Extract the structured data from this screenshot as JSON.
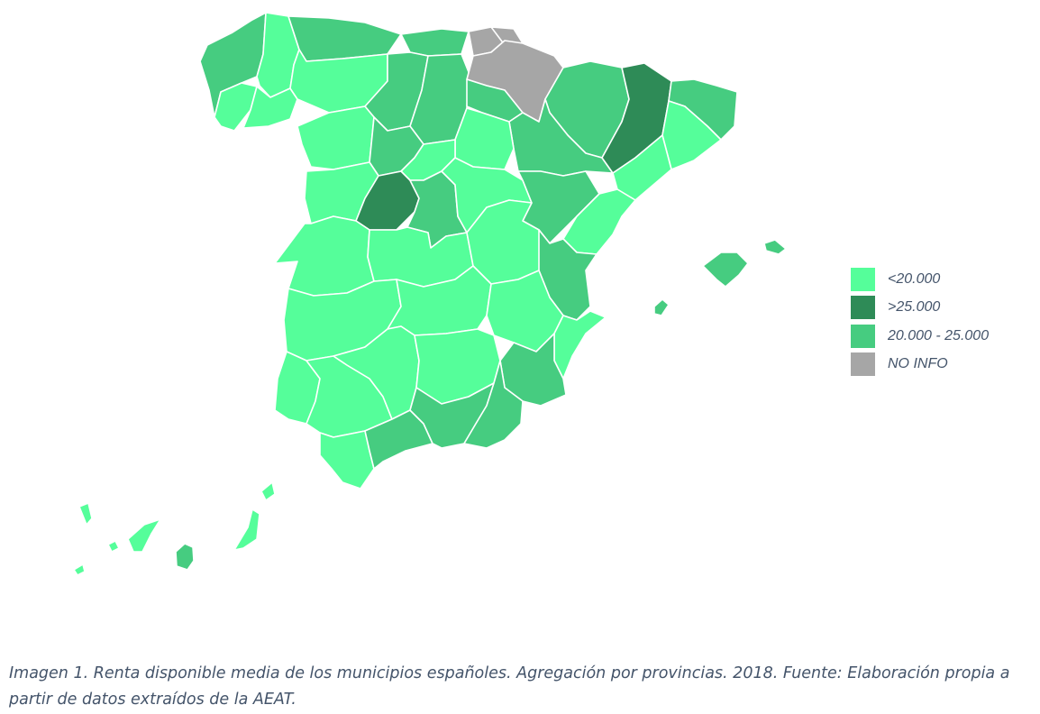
{
  "colors": {
    "lt20000": "#55fe9a",
    "gt25000": "#2e8b57",
    "mid": "#46cc80",
    "noinfo": "#a6a6a6"
  },
  "legend": [
    {
      "label": "<20.000",
      "color": "#55fe9a"
    },
    {
      "label": ">25.000",
      "color": "#2e8b57"
    },
    {
      "label": "20.000 - 25.000",
      "color": "#46cc80"
    },
    {
      "label": "NO INFO",
      "color": "#a6a6a6"
    }
  ],
  "regions": [
    {
      "category": "mid"
    },
    {
      "category": "lt20000"
    },
    {
      "category": "lt20000"
    },
    {
      "category": "lt20000"
    },
    {
      "category": "mid"
    },
    {
      "category": "lt20000"
    },
    {
      "category": "mid"
    },
    {
      "category": "mid"
    },
    {
      "category": "mid"
    },
    {
      "category": "noinfo"
    },
    {
      "category": "noinfo"
    },
    {
      "category": "noinfo"
    },
    {
      "category": "mid"
    },
    {
      "category": "mid"
    },
    {
      "category": "mid"
    },
    {
      "category": "gt25000"
    },
    {
      "category": "mid"
    },
    {
      "category": "lt20000"
    },
    {
      "category": "lt20000"
    },
    {
      "category": "lt20000"
    },
    {
      "category": "mid"
    },
    {
      "category": "lt20000"
    },
    {
      "category": "lt20000"
    },
    {
      "category": "lt20000"
    },
    {
      "category": "gt25000"
    },
    {
      "category": "mid"
    },
    {
      "category": "lt20000"
    },
    {
      "category": "mid"
    },
    {
      "category": "lt20000"
    },
    {
      "category": "lt20000"
    },
    {
      "category": "lt20000"
    },
    {
      "category": "lt20000"
    },
    {
      "category": "mid"
    },
    {
      "category": "lt20000"
    },
    {
      "category": "lt20000"
    },
    {
      "category": "lt20000"
    },
    {
      "category": "lt20000"
    },
    {
      "category": "lt20000"
    },
    {
      "category": "lt20000"
    },
    {
      "category": "lt20000"
    },
    {
      "category": "lt20000"
    },
    {
      "category": "mid"
    },
    {
      "category": "lt20000"
    },
    {
      "category": "mid"
    },
    {
      "category": "mid"
    },
    {
      "category": "mid"
    },
    {
      "category": "mid"
    },
    {
      "category": "mid"
    },
    {
      "category": "mid"
    },
    {
      "category": "lt20000"
    },
    {
      "category": "lt20000"
    },
    {
      "category": "lt20000"
    },
    {
      "category": "lt20000"
    },
    {
      "category": "mid"
    },
    {
      "category": "lt20000"
    }
  ],
  "caption": "Imagen 1. Renta disponible media de los municipios españoles. Agregación por provincias. 2018. Fuente: Elaboración propia a partir de datos extraídos de la AEAT."
}
